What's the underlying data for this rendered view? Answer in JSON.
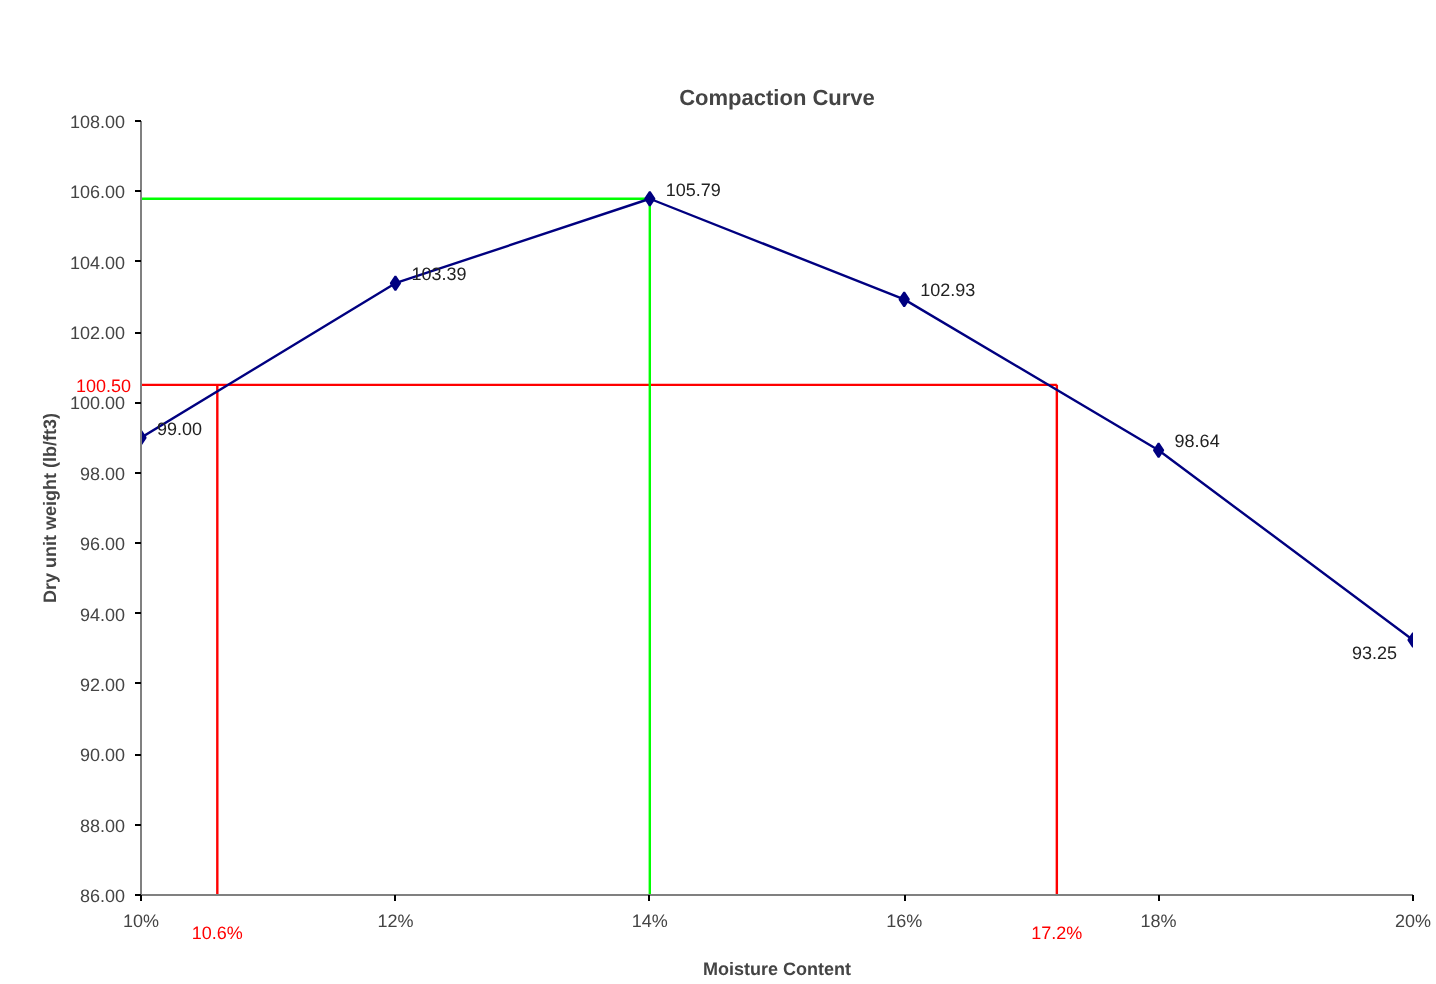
{
  "chart_data": {
    "type": "line",
    "title": "Compaction Curve",
    "xlabel": "Moisture Content",
    "ylabel": "Dry unit weight (lb/ft3)",
    "x": [
      10,
      12,
      14,
      16,
      18,
      20
    ],
    "series": [
      {
        "color": "#000080",
        "values": [
          99.0,
          103.39,
          105.79,
          102.93,
          98.64,
          93.25
        ],
        "value_labels": [
          "99.00",
          "103.39",
          "105.79",
          "102.93",
          "98.64",
          "93.25"
        ]
      }
    ],
    "marker": "diamond",
    "xlim": [
      10,
      20
    ],
    "xticks": [
      {
        "value": 10,
        "label": "10%"
      },
      {
        "value": 12,
        "label": "12%"
      },
      {
        "value": 14,
        "label": "14%"
      },
      {
        "value": 16,
        "label": "16%"
      },
      {
        "value": 18,
        "label": "18%"
      },
      {
        "value": 20,
        "label": "20%"
      }
    ],
    "ylim": [
      86,
      108
    ],
    "yticks": [
      {
        "value": 86,
        "label": "86.00"
      },
      {
        "value": 88,
        "label": "88.00"
      },
      {
        "value": 90,
        "label": "90.00"
      },
      {
        "value": 92,
        "label": "92.00"
      },
      {
        "value": 94,
        "label": "94.00"
      },
      {
        "value": 96,
        "label": "96.00"
      },
      {
        "value": 98,
        "label": "98.00"
      },
      {
        "value": 100,
        "label": "100.00"
      },
      {
        "value": 102,
        "label": "102.00"
      },
      {
        "value": 104,
        "label": "104.00"
      },
      {
        "value": 106,
        "label": "106.00"
      },
      {
        "value": 108,
        "label": "108.00"
      }
    ],
    "ref_lines": [
      {
        "axis": "y",
        "value": 100.5,
        "label": "100.50",
        "color": "#ff0000"
      },
      {
        "axis": "x",
        "value": 10.6,
        "label": "10.6%",
        "color": "#ff0000"
      },
      {
        "axis": "x",
        "value": 17.2,
        "label": "17.2%",
        "color": "#ff0000"
      },
      {
        "axis": "y",
        "value": 105.79,
        "color": "#00ff00"
      },
      {
        "axis": "x",
        "value": 14,
        "color": "#00ff00"
      }
    ]
  }
}
